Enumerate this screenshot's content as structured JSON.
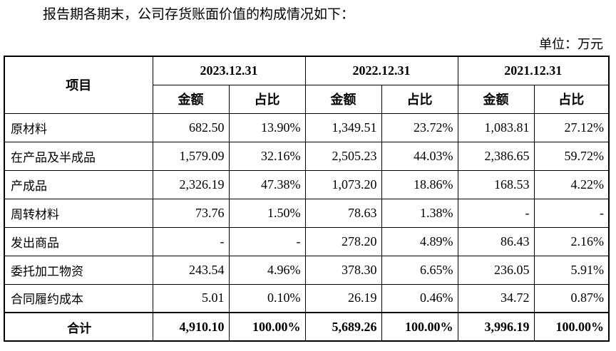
{
  "intro": "报告期各期末，公司存货账面价值的构成情况如下：",
  "unit": "单位：万元",
  "table": {
    "item_header": "项目",
    "periods": [
      "2023.12.31",
      "2022.12.31",
      "2021.12.31"
    ],
    "sub_headers": [
      "金额",
      "占比"
    ],
    "rows": [
      {
        "name": "原材料",
        "cells": [
          "682.50",
          "13.90%",
          "1,349.51",
          "23.72%",
          "1,083.81",
          "27.12%"
        ]
      },
      {
        "name": "在产品及半成品",
        "cells": [
          "1,579.09",
          "32.16%",
          "2,505.23",
          "44.03%",
          "2,386.65",
          "59.72%"
        ]
      },
      {
        "name": "产成品",
        "cells": [
          "2,326.19",
          "47.38%",
          "1,073.20",
          "18.86%",
          "168.53",
          "4.22%"
        ]
      },
      {
        "name": "周转材料",
        "cells": [
          "73.76",
          "1.50%",
          "78.63",
          "1.38%",
          "-",
          "-"
        ]
      },
      {
        "name": "发出商品",
        "cells": [
          "-",
          "-",
          "278.20",
          "4.89%",
          "86.43",
          "2.16%"
        ]
      },
      {
        "name": "委托加工物资",
        "cells": [
          "243.54",
          "4.96%",
          "378.30",
          "6.65%",
          "236.05",
          "5.91%"
        ]
      },
      {
        "name": "合同履约成本",
        "cells": [
          "5.01",
          "0.10%",
          "26.19",
          "0.46%",
          "34.72",
          "0.87%"
        ]
      }
    ],
    "total": {
      "name": "合计",
      "cells": [
        "4,910.10",
        "100.00%",
        "5,689.26",
        "100.00%",
        "3,996.19",
        "100.00%"
      ]
    }
  }
}
